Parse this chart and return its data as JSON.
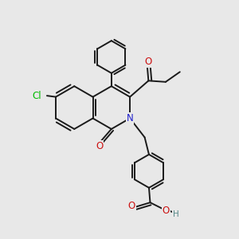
{
  "background_color": "#e8e8e8",
  "bond_color": "#1a1a1a",
  "N_color": "#2020cc",
  "O_color": "#cc1111",
  "Cl_color": "#00bb00",
  "H_color": "#558888",
  "bond_width": 1.4,
  "font_size": 8.5,
  "xlim": [
    0,
    10
  ],
  "ylim": [
    0,
    10
  ]
}
